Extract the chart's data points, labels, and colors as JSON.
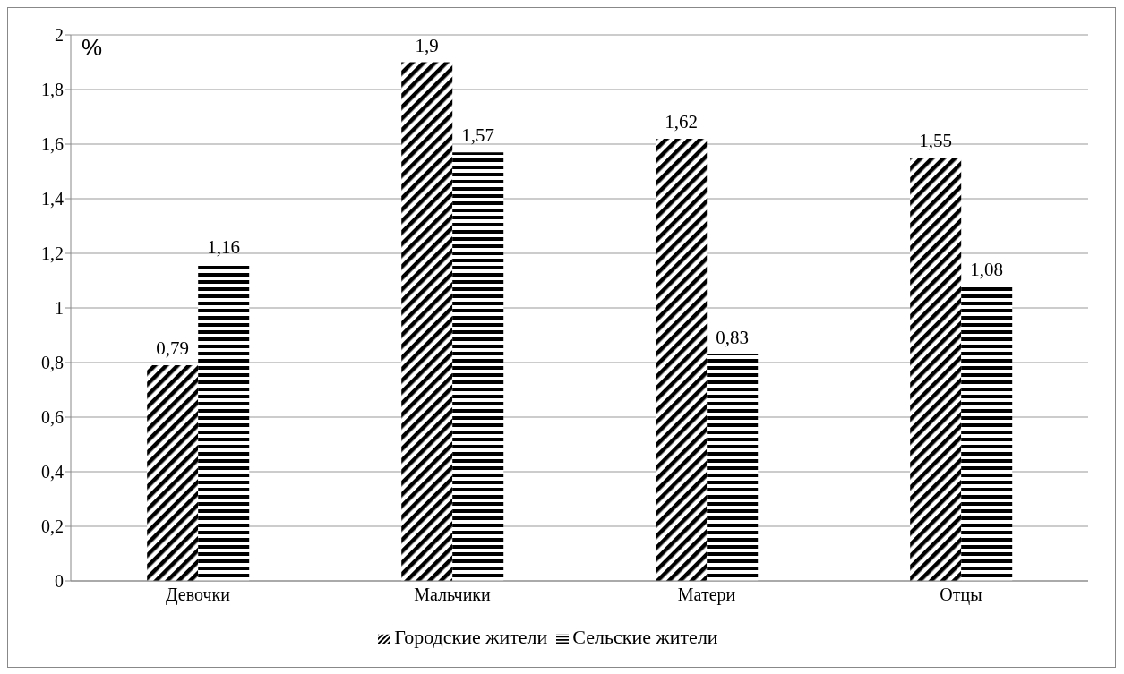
{
  "chart_data": {
    "type": "bar",
    "ylabel": "%",
    "categories": [
      "Девочки",
      "Мальчики",
      "Матери",
      "Отцы"
    ],
    "series": [
      {
        "name": "Городские жители",
        "color": "#000000",
        "values": [
          0.79,
          1.9,
          1.62,
          1.55
        ],
        "value_labels": [
          "0,79",
          "1,9",
          "1,62",
          "1,55"
        ]
      },
      {
        "name": "Сельские жители",
        "color": "#000000",
        "values": [
          1.16,
          1.57,
          0.83,
          1.08
        ],
        "value_labels": [
          "1,16",
          "1,57",
          "0,83",
          "1,08"
        ]
      }
    ],
    "ylim": [
      0,
      2
    ],
    "yticks": [
      {
        "value": 0,
        "label": "0"
      },
      {
        "value": 0.2,
        "label": "0,2"
      },
      {
        "value": 0.4,
        "label": "0,4"
      },
      {
        "value": 0.6,
        "label": "0,6"
      },
      {
        "value": 0.8,
        "label": "0,8"
      },
      {
        "value": 1,
        "label": "1"
      },
      {
        "value": 1.2,
        "label": "1,2"
      },
      {
        "value": 1.4,
        "label": "1,4"
      },
      {
        "value": 1.6,
        "label": "1,6"
      },
      {
        "value": 1.8,
        "label": "1,8"
      },
      {
        "value": 2,
        "label": "2"
      }
    ],
    "grid": "y",
    "legend": "bottom"
  }
}
